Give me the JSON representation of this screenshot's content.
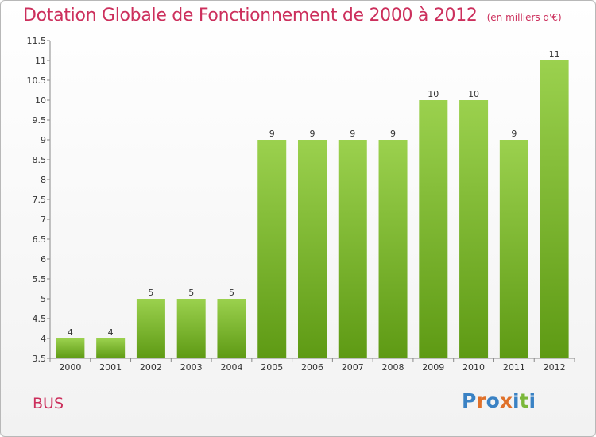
{
  "header": {
    "title": "Dotation Globale de Fonctionnement de 2000 à 2012",
    "subtitle": "(en milliers d'€)"
  },
  "footer": {
    "place": "BUS",
    "logo_text": "Proxiti"
  },
  "colors": {
    "title": "#cc2f5c",
    "bar_top": "#9bd14e",
    "bar_bottom": "#5e9a14",
    "logo": [
      "#3a82c4",
      "#e0712a",
      "#3a82c4",
      "#e0712a",
      "#3a82c4",
      "#7bb83a",
      "#3a82c4"
    ]
  },
  "chart_data": {
    "type": "bar",
    "categories": [
      "2000",
      "2001",
      "2002",
      "2003",
      "2004",
      "2005",
      "2006",
      "2007",
      "2008",
      "2009",
      "2010",
      "2011",
      "2012"
    ],
    "values": [
      4,
      4,
      5,
      5,
      5,
      9,
      9,
      9,
      9,
      10,
      10,
      9,
      11
    ],
    "title": "Dotation Globale de Fonctionnement de 2000 à 2012",
    "subtitle": "(en milliers d'€)",
    "xlabel": "",
    "ylabel": "",
    "ylim": [
      3.5,
      11.5
    ],
    "yticks": [
      "3.5",
      "4",
      "4.5",
      "5",
      "5.5",
      "6",
      "6.5",
      "7",
      "7.5",
      "8",
      "8.5",
      "9",
      "9.5",
      "10",
      "10.5",
      "11",
      "11.5"
    ],
    "grid": false,
    "legend": "none"
  }
}
